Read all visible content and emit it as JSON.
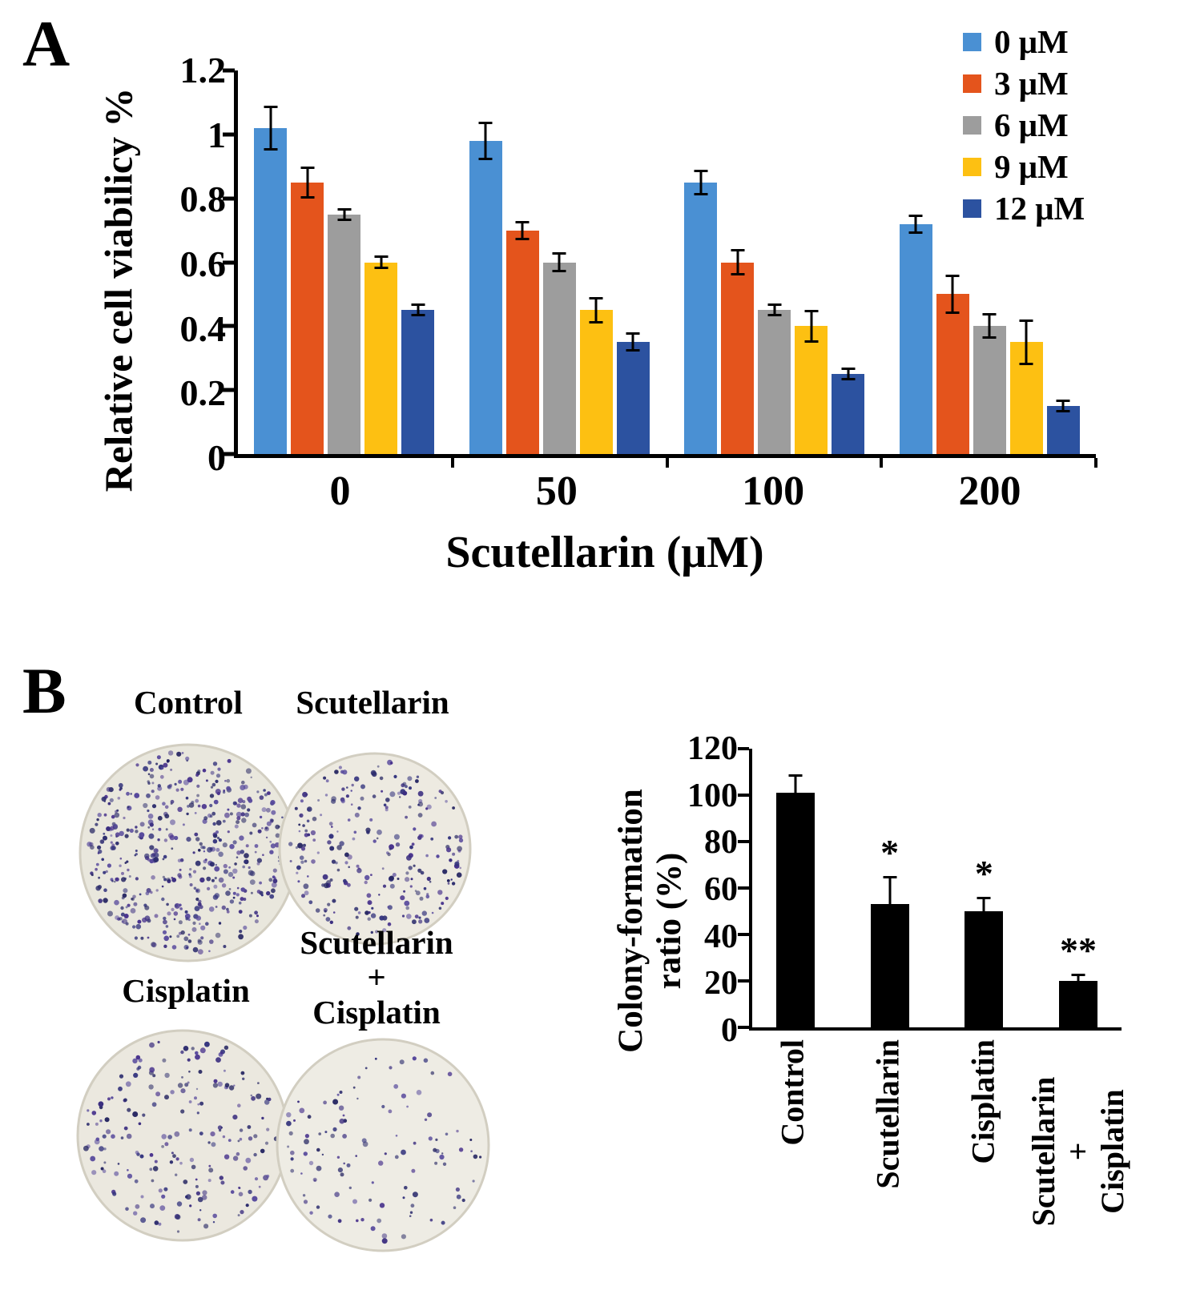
{
  "panelA": {
    "label": "A"
  },
  "panelB": {
    "label": "B",
    "dishes": [
      {
        "label": "Control",
        "colonies_approx": 500
      },
      {
        "label": "Scutellarin",
        "colonies_approx": 250
      },
      {
        "label": "Cisplatin",
        "colonies_approx": 205
      },
      {
        "label": "Scutellarin + Cisplatin",
        "label_lines": [
          "Scutellarin",
          "+",
          "Cisplatin"
        ],
        "colonies_approx": 115
      }
    ]
  },
  "chart_data": [
    {
      "type": "bar",
      "panel": "A",
      "title": "",
      "xlabel": "Scutellarin (μM)",
      "ylabel": "Relative cell viabilicy %",
      "ylim": [
        0,
        1.2
      ],
      "yticks": [
        "0",
        "0.2",
        "0.4",
        "0.6",
        "0.8",
        "1",
        "1.2"
      ],
      "categories": [
        "0",
        "50",
        "100",
        "200"
      ],
      "legend_position": "top-right",
      "grid": false,
      "series": [
        {
          "name": "0 μM",
          "color": "#4a90d3",
          "values": [
            1.02,
            0.98,
            0.85,
            0.72
          ],
          "errors": [
            0.07,
            0.06,
            0.04,
            0.03
          ]
        },
        {
          "name": "3 μM",
          "color": "#e4541c",
          "values": [
            0.85,
            0.7,
            0.6,
            0.5
          ],
          "errors": [
            0.05,
            0.03,
            0.04,
            0.06
          ]
        },
        {
          "name": "6 μM",
          "color": "#9d9d9d",
          "values": [
            0.75,
            0.6,
            0.45,
            0.4
          ],
          "errors": [
            0.02,
            0.03,
            0.02,
            0.04
          ]
        },
        {
          "name": "9 μM",
          "color": "#fdc012",
          "values": [
            0.6,
            0.45,
            0.4,
            0.35
          ],
          "errors": [
            0.02,
            0.04,
            0.05,
            0.07
          ]
        },
        {
          "name": "12 μM",
          "color": "#2c52a0",
          "values": [
            0.45,
            0.35,
            0.25,
            0.15
          ],
          "errors": [
            0.02,
            0.03,
            0.02,
            0.02
          ]
        }
      ]
    },
    {
      "type": "bar",
      "panel": "B",
      "ylabel": "Colony-formation ratio (%)",
      "ylabel_lines": [
        "Colony-formation",
        "ratio (%)"
      ],
      "ylim": [
        0,
        120
      ],
      "yticks": [
        "0",
        "20",
        "40",
        "60",
        "80",
        "100",
        "120"
      ],
      "categories": [
        "Control",
        "Scutellarin",
        "Cisplatin",
        "Scutellarin + Cisplatin"
      ],
      "categories_display": [
        "Control",
        "Scutellarin",
        "Cisplatin",
        [
          "Scutellarin",
          "+",
          "Cisplatin"
        ]
      ],
      "values": [
        101,
        53,
        50,
        20
      ],
      "errors": [
        8,
        12,
        6,
        3
      ],
      "annotations": [
        "",
        "*",
        "*",
        "**"
      ],
      "bar_color": "#000000",
      "grid": false
    }
  ]
}
